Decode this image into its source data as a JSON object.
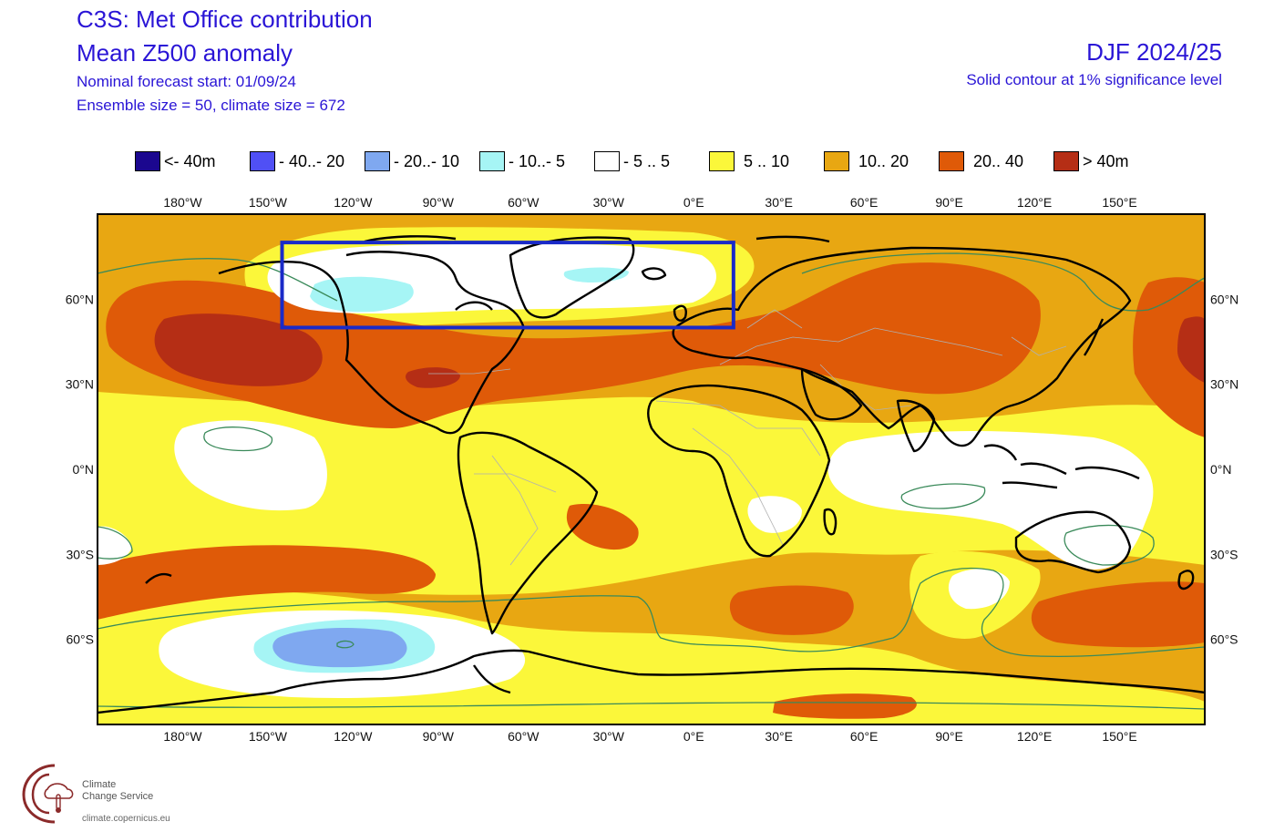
{
  "header": {
    "title1": "C3S: Met Office contribution",
    "title2": "Mean Z500 anomaly",
    "subtitle1": "Nominal forecast start: 01/09/24",
    "subtitle2": "Ensemble size = 50, climate size = 672",
    "period": "DJF 2024/25",
    "significance_note": "Solid contour at 1% significance level"
  },
  "legend": [
    {
      "label": "<- 40m",
      "color": "#1b078f"
    },
    {
      "label": "- 40..- 20",
      "color": "#5050f5"
    },
    {
      "label": "- 20..- 10",
      "color": "#7fa8f0"
    },
    {
      "label": "- 10..- 5",
      "color": "#a6f5f5"
    },
    {
      "label": "- 5 .. 5",
      "color": "#ffffff"
    },
    {
      "label": "5 .. 10",
      "color": "#fbf73a"
    },
    {
      "label": "10.. 20",
      "color": "#e8a712"
    },
    {
      "label": "20.. 40",
      "color": "#df5a08"
    },
    {
      "label": ">  40m",
      "color": "#b52e15"
    }
  ],
  "map": {
    "lon_ticks": [
      "180°W",
      "150°W",
      "120°W",
      "90°W",
      "60°W",
      "30°W",
      "0°E",
      "30°E",
      "60°E",
      "90°E",
      "120°E",
      "150°E"
    ],
    "lat_ticks": [
      "60°N",
      "30°N",
      "0°N",
      "30°S",
      "60°S"
    ],
    "highlight_box_color": "#1a2ac8",
    "highlight_box": {
      "lon": [
        -145,
        14
      ],
      "lat": [
        50,
        80
      ]
    },
    "significance_contour_color": "#3a8a5a",
    "land_outline_color": "#000000",
    "border_color": "#b0b0b0"
  },
  "logo": {
    "name_line1": "Climate",
    "name_line2": "Change Service",
    "url": "climate.copernicus.eu"
  }
}
